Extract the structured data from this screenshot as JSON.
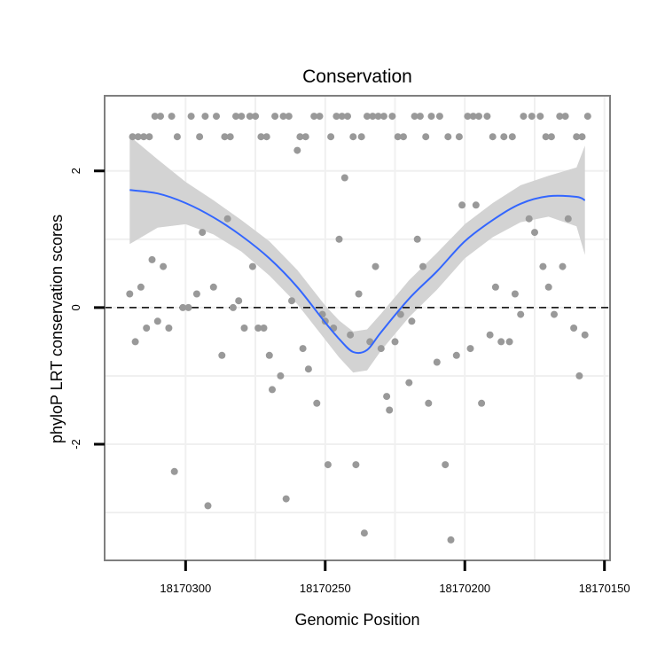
{
  "chart_data": {
    "type": "scatter",
    "title": "Conservation",
    "xlabel": "Genomic Position",
    "ylabel": "phyloP LRT conservation scores",
    "x_reversed": true,
    "xlim": [
      18170329,
      18170148
    ],
    "ylim": [
      -3.7,
      3.1
    ],
    "x_ticks": [
      18170300,
      18170250,
      18170200,
      18170150
    ],
    "x_tick_labels": [
      "18170300",
      "18170250",
      "18170200",
      "18170150"
    ],
    "y_ticks": [
      -2,
      0,
      2
    ],
    "y_tick_labels": [
      "-2",
      "0",
      "2"
    ],
    "x_minor_grid": [
      18170275,
      18170225,
      18170175
    ],
    "y_minor_grid": [
      -3,
      -1,
      1
    ],
    "reference_line": {
      "y": 0,
      "style": "dashed",
      "color": "#000000"
    },
    "grid": true,
    "colors": {
      "points": "#999999",
      "smooth": "#3366ff",
      "ribbon": "#d3d3d3",
      "frame": "#7f7f7f"
    },
    "series": [
      {
        "kind": "points",
        "x": [
          18170320,
          18170318,
          18170316,
          18170314,
          18170312,
          18170310,
          18170308,
          18170306,
          18170304,
          18170301,
          18170299,
          18170296,
          18170294,
          18170292,
          18170290,
          18170287,
          18170285,
          18170283,
          18170281,
          18170279,
          18170276,
          18170274,
          18170272,
          18170270,
          18170269,
          18170266,
          18170264,
          18170262,
          18170260,
          18170258,
          18170256,
          18170253,
          18170251,
          18170250,
          18170249,
          18170247,
          18170245,
          18170243,
          18170241,
          18170239,
          18170238,
          18170236,
          18170234,
          18170232,
          18170230,
          18170228,
          18170227,
          18170225,
          18170223,
          18170220,
          18170219,
          18170217,
          18170215,
          18170213,
          18170210,
          18170207,
          18170205,
          18170203,
          18170201,
          18170198,
          18170196,
          18170194,
          18170191,
          18170189,
          18170187,
          18170184,
          18170182,
          18170180,
          18170177,
          18170175,
          18170172,
          18170170,
          18170168,
          18170165,
          18170163,
          18170161,
          18170159,
          18170157,
          18170319,
          18170317,
          18170315,
          18170313,
          18170311,
          18170309,
          18170305,
          18170303,
          18170298,
          18170295,
          18170293,
          18170289,
          18170286,
          18170284,
          18170282,
          18170280,
          18170277,
          18170275,
          18170273,
          18170271,
          18170268,
          18170265,
          18170263,
          18170259,
          18170257,
          18170254,
          18170252,
          18170248,
          18170246,
          18170244,
          18170242,
          18170240,
          18170237,
          18170235,
          18170233,
          18170231,
          18170229,
          18170226,
          18170224,
          18170222,
          18170218,
          18170216,
          18170214,
          18170212,
          18170209,
          18170206,
          18170202,
          18170199,
          18170197,
          18170195,
          18170192,
          18170190,
          18170186,
          18170183,
          18170179,
          18170176,
          18170173,
          18170171,
          18170169,
          18170166,
          18170164,
          18170160,
          18170158,
          18170156
        ],
        "y": [
          0.2,
          -0.5,
          0.3,
          -0.3,
          0.7,
          -0.2,
          0.6,
          -0.3,
          -2.4,
          0.0,
          0.0,
          0.2,
          1.1,
          -2.9,
          0.3,
          -0.7,
          1.3,
          0.0,
          0.1,
          -0.3,
          0.6,
          -0.3,
          -0.3,
          -0.7,
          -1.2,
          -1.0,
          -2.8,
          0.1,
          2.3,
          -0.6,
          -0.9,
          -1.4,
          -0.1,
          -0.2,
          -2.3,
          -0.3,
          1.0,
          1.9,
          -0.4,
          -2.3,
          0.2,
          -3.3,
          -0.5,
          0.6,
          -0.6,
          -1.3,
          -1.5,
          -0.5,
          -0.1,
          -1.1,
          -0.2,
          1.0,
          0.6,
          -1.4,
          -0.8,
          -2.3,
          -3.4,
          -0.7,
          1.5,
          -0.6,
          1.5,
          -1.4,
          -0.4,
          0.3,
          -0.5,
          -0.5,
          0.2,
          -0.1,
          1.3,
          1.1,
          0.6,
          0.3,
          -0.1,
          0.6,
          1.3,
          -0.3,
          -1.0,
          -0.4,
          2.5,
          2.5,
          2.5,
          2.5,
          2.8,
          2.8,
          2.8,
          2.5,
          2.8,
          2.5,
          2.8,
          2.8,
          2.5,
          2.5,
          2.8,
          2.8,
          2.8,
          2.8,
          2.5,
          2.5,
          2.8,
          2.8,
          2.8,
          2.5,
          2.5,
          2.8,
          2.8,
          2.5,
          2.8,
          2.8,
          2.8,
          2.5,
          2.5,
          2.8,
          2.8,
          2.8,
          2.8,
          2.8,
          2.5,
          2.5,
          2.8,
          2.8,
          2.5,
          2.8,
          2.8,
          2.5,
          2.5,
          2.8,
          2.8,
          2.8,
          2.8,
          2.5,
          2.5,
          2.5,
          2.8,
          2.8,
          2.8,
          2.5,
          2.5,
          2.8,
          2.8,
          2.5,
          2.5,
          2.8
        ]
      },
      {
        "kind": "smooth",
        "x": [
          18170320,
          18170310,
          18170300,
          18170290,
          18170280,
          18170270,
          18170260,
          18170250,
          18170245,
          18170240,
          18170235,
          18170230,
          18170220,
          18170210,
          18170200,
          18170190,
          18170180,
          18170170,
          18170160,
          18170157
        ],
        "y": [
          1.72,
          1.67,
          1.53,
          1.32,
          1.05,
          0.72,
          0.3,
          -0.22,
          -0.46,
          -0.65,
          -0.62,
          -0.36,
          0.13,
          0.53,
          0.97,
          1.28,
          1.52,
          1.63,
          1.62,
          1.57
        ],
        "ci_lower": [
          0.93,
          1.17,
          1.22,
          1.07,
          0.82,
          0.47,
          0.05,
          -0.47,
          -0.73,
          -0.95,
          -0.92,
          -0.63,
          -0.14,
          0.26,
          0.72,
          1.03,
          1.25,
          1.33,
          1.19,
          0.77
        ],
        "ci_upper": [
          2.51,
          2.17,
          1.84,
          1.57,
          1.28,
          0.97,
          0.55,
          0.03,
          -0.19,
          -0.35,
          -0.32,
          -0.09,
          0.4,
          0.8,
          1.22,
          1.53,
          1.79,
          1.93,
          2.05,
          2.37
        ]
      }
    ]
  }
}
